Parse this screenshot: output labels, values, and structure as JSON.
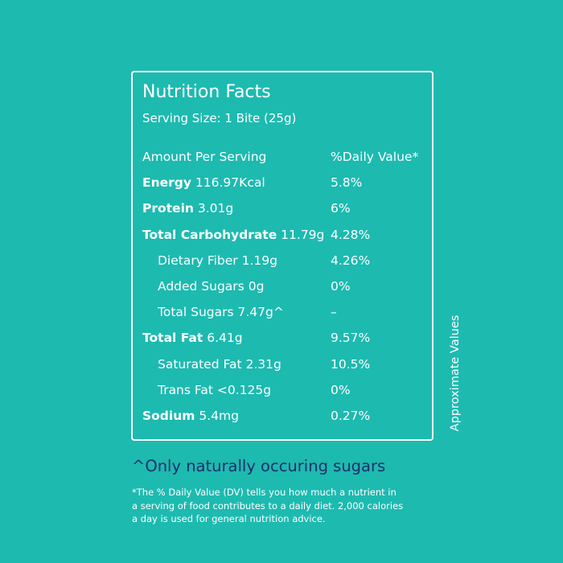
{
  "label": {
    "title": "Nutrition Facts",
    "serving_size": "Serving Size: 1 Bite (25g)",
    "header_amount": "Amount Per Serving",
    "header_dv": "%Daily Value*",
    "rows": [
      {
        "name": "Energy",
        "amount": "116.97Kcal",
        "dv": "5.8%"
      },
      {
        "name": "Protein",
        "amount": "3.01g",
        "dv": "6%"
      },
      {
        "name": "Total Carbohydrate",
        "amount": "11.79g",
        "dv": "4.28%"
      },
      {
        "name": "Dietary Fiber",
        "amount": "1.19g",
        "dv": "4.26%"
      },
      {
        "name": "Added Sugars",
        "amount": "0g",
        "dv": "0%"
      },
      {
        "name": "Total Sugars",
        "amount": "7.47g^",
        "dv": "–"
      },
      {
        "name": "Total Fat",
        "amount": "6.41g",
        "dv": "9.57%"
      },
      {
        "name": "Saturated Fat",
        "amount": "2.31g",
        "dv": "10.5%"
      },
      {
        "name": "Trans Fat",
        "amount": "<0.125g",
        "dv": "0%"
      },
      {
        "name": "Sodium",
        "amount": "5.4mg",
        "dv": "0.27%"
      }
    ]
  },
  "side_note": "Approximate Values",
  "sugar_note": "^Only naturally occuring sugars",
  "disclaimer": {
    "line1": "*The % Daily Value (DV) tells you how much a nutrient in",
    "line2": "a serving of food contributes to a daily diet. 2,000 calories",
    "line3": "a day is used for general nutrition advice."
  },
  "colors": {
    "background": "#1dbab0",
    "text": "#ffffff",
    "accent_text": "#1f2f6b"
  }
}
